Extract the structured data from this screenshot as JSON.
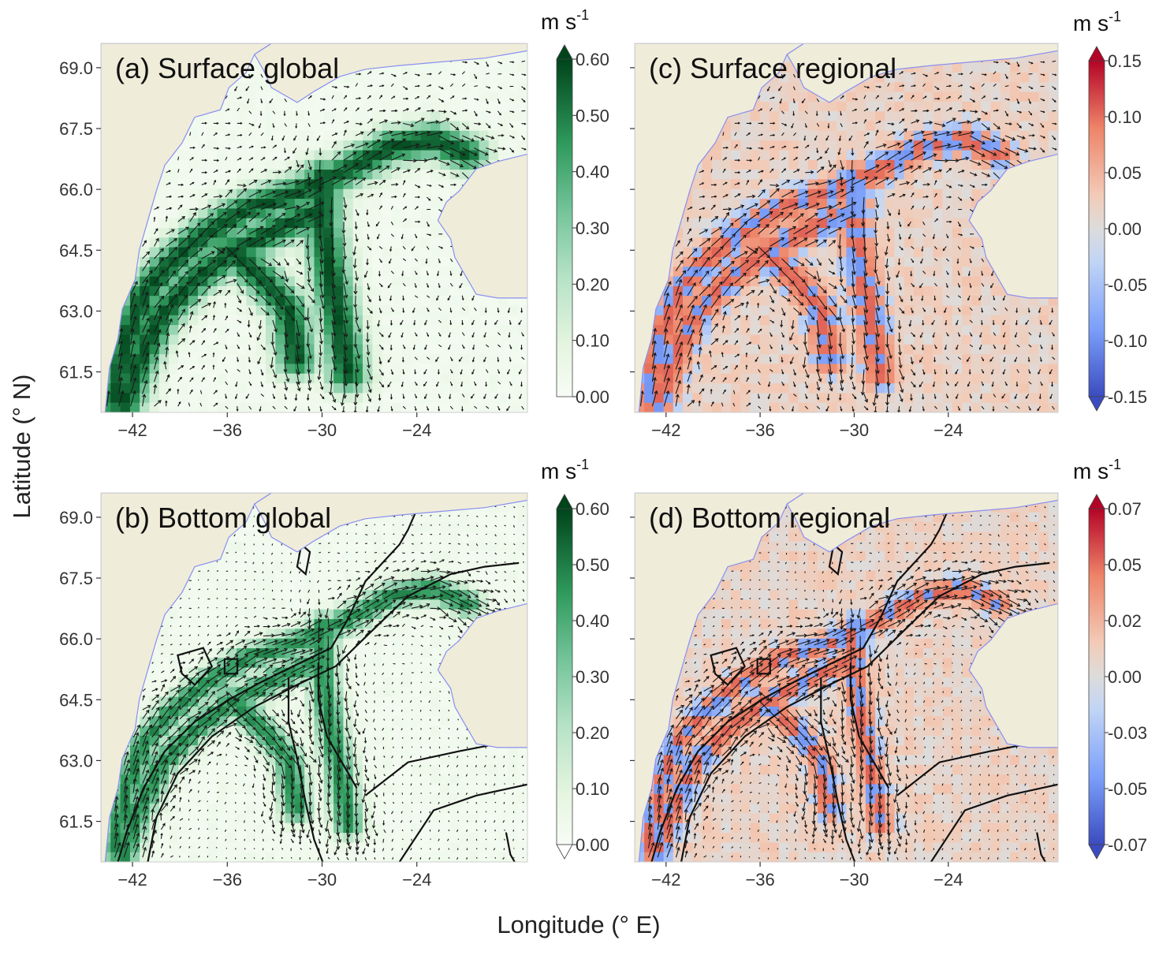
{
  "figure": {
    "ylabel": "Latitude (° N)",
    "xlabel": "Longitude (° E)"
  },
  "colors": {
    "land": "#efecd9",
    "coast": "#8a8ff0",
    "arrows": "#1a1a1a",
    "contour": "#111111"
  },
  "chart_data": [
    {
      "type": "heatmap",
      "id": "a",
      "title": "(a) Surface global",
      "xlim": [
        -44,
        -17
      ],
      "ylim": [
        60.5,
        69.6
      ],
      "xticks": [
        "−42",
        "−36",
        "−30",
        "−24"
      ],
      "xtick_values": [
        -42,
        -36,
        -30,
        -24
      ],
      "yticks": [
        "69.0",
        "67.5",
        "66.0",
        "64.5",
        "63.0",
        "61.5"
      ],
      "ytick_values": [
        69.0,
        67.5,
        66.0,
        64.5,
        63.0,
        61.5
      ],
      "colormap": "Greens",
      "colorbar": {
        "unit": "m s",
        "unit_exp": "-1",
        "ticks": [
          "0.00",
          "0.10",
          "0.20",
          "0.30",
          "0.40",
          "0.50",
          "0.60"
        ],
        "range": [
          0,
          0.6
        ],
        "extend": "max"
      },
      "bathymetry_contours": false
    },
    {
      "type": "heatmap",
      "id": "b",
      "title": "(b) Bottom global",
      "xlim": [
        -44,
        -17
      ],
      "ylim": [
        60.5,
        69.6
      ],
      "xticks": [
        "−42",
        "−36",
        "−30",
        "−24"
      ],
      "xtick_values": [
        -42,
        -36,
        -30,
        -24
      ],
      "yticks": [
        "69.0",
        "67.5",
        "66.0",
        "64.5",
        "63.0",
        "61.5"
      ],
      "ytick_values": [
        69.0,
        67.5,
        66.0,
        64.5,
        63.0,
        61.5
      ],
      "colormap": "Greens",
      "colorbar": {
        "unit": "m s",
        "unit_exp": "-1",
        "ticks": [
          "0.00",
          "0.10",
          "0.20",
          "0.30",
          "0.40",
          "0.50",
          "0.60"
        ],
        "range": [
          0,
          0.6
        ],
        "extend": "both"
      },
      "bathymetry_contours": true
    },
    {
      "type": "heatmap",
      "id": "c",
      "title": "(c) Surface regional",
      "xlim": [
        -44,
        -17
      ],
      "ylim": [
        60.5,
        69.6
      ],
      "xticks": [
        "−42",
        "−36",
        "−30",
        "−24"
      ],
      "xtick_values": [
        -42,
        -36,
        -30,
        -24
      ],
      "yticks": [
        "69.0",
        "67.5",
        "66.0",
        "64.5",
        "63.0",
        "61.5"
      ],
      "ytick_values": [
        69.0,
        67.5,
        66.0,
        64.5,
        63.0,
        61.5
      ],
      "colormap": "coolwarm",
      "colorbar": {
        "unit": "m s",
        "unit_exp": "-1",
        "ticks": [
          "-0.15",
          "-0.10",
          "-0.05",
          "0.00",
          "0.05",
          "0.10",
          "0.15"
        ],
        "range": [
          -0.15,
          0.15
        ],
        "extend": "both"
      },
      "bathymetry_contours": false
    },
    {
      "type": "heatmap",
      "id": "d",
      "title": "(d) Bottom regional",
      "xlim": [
        -44,
        -17
      ],
      "ylim": [
        60.5,
        69.6
      ],
      "xticks": [
        "−42",
        "−36",
        "−30",
        "−24"
      ],
      "xtick_values": [
        -42,
        -36,
        -30,
        -24
      ],
      "yticks": [
        "69.0",
        "67.5",
        "66.0",
        "64.5",
        "63.0",
        "61.5"
      ],
      "ytick_values": [
        69.0,
        67.5,
        66.0,
        64.5,
        63.0,
        61.5
      ],
      "colormap": "coolwarm",
      "colorbar": {
        "unit": "m s",
        "unit_exp": "-1",
        "ticks": [
          "-0.07",
          "-0.05",
          "-0.03",
          "0.00",
          "0.02",
          "0.05",
          "0.07"
        ],
        "range": [
          -0.07,
          0.07
        ],
        "extend": "both"
      },
      "bathymetry_contours": true
    }
  ]
}
